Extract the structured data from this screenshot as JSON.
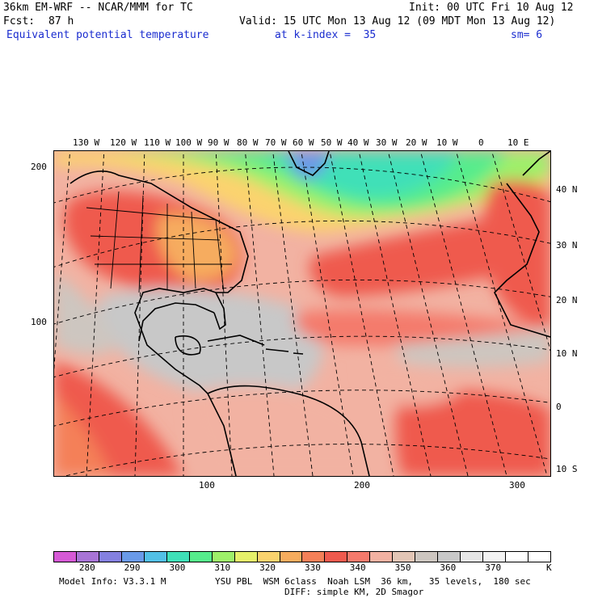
{
  "header": {
    "model_title": "36km EM-WRF -- NCAR/MMM for TC",
    "init": "Init: 00 UTC Fri 10 Aug 12",
    "fcst_label": "Fcst:",
    "fcst_value": "87 h",
    "valid": "Valid: 15 UTC Mon 13 Aug 12 (09 MDT Mon 13 Aug 12)",
    "field_name": "Equivalent potential temperature",
    "level": "at k-index =  35",
    "smoothing": "sm= 6"
  },
  "map": {
    "lon_labels": [
      "130 W",
      "120 W",
      "110 W",
      "100 W",
      "90 W",
      "80 W",
      "70 W",
      "60 W",
      "50 W",
      "40 W",
      "30 W",
      "20 W",
      "10 W",
      "0",
      "10 E"
    ],
    "lat_labels": [
      "40 N",
      "30 N",
      "20 N",
      "10 N",
      "0",
      "10 S"
    ],
    "y_grid_labels": [
      "200",
      "100"
    ],
    "x_grid_labels": [
      "100",
      "200",
      "300"
    ]
  },
  "colorbar": {
    "colors": [
      "#d65ad6",
      "#a874d6",
      "#8480e0",
      "#6a9ae8",
      "#52c0e6",
      "#3fe0b8",
      "#56ec8c",
      "#9ef06a",
      "#e6f06a",
      "#fbd36e",
      "#f6ac5e",
      "#f48058",
      "#ef5a4e",
      "#f47a6c",
      "#f2b2a2",
      "#e3c6b6",
      "#cdc6c0",
      "#c8c8c8",
      "#e6e6e6",
      "#f3f3f3",
      "#ffffff",
      "#ffffff"
    ],
    "labels": [
      "280",
      "290",
      "300",
      "310",
      "320",
      "330",
      "340",
      "350",
      "360",
      "370"
    ],
    "units": "K"
  },
  "footer": {
    "model_info": "Model Info: V3.3.1 M",
    "physics": "YSU PBL  WSM 6class  Noah LSM  36 km,   35 levels,  180 sec",
    "diffusion": "DIFF: simple KM, 2D Smagor"
  }
}
